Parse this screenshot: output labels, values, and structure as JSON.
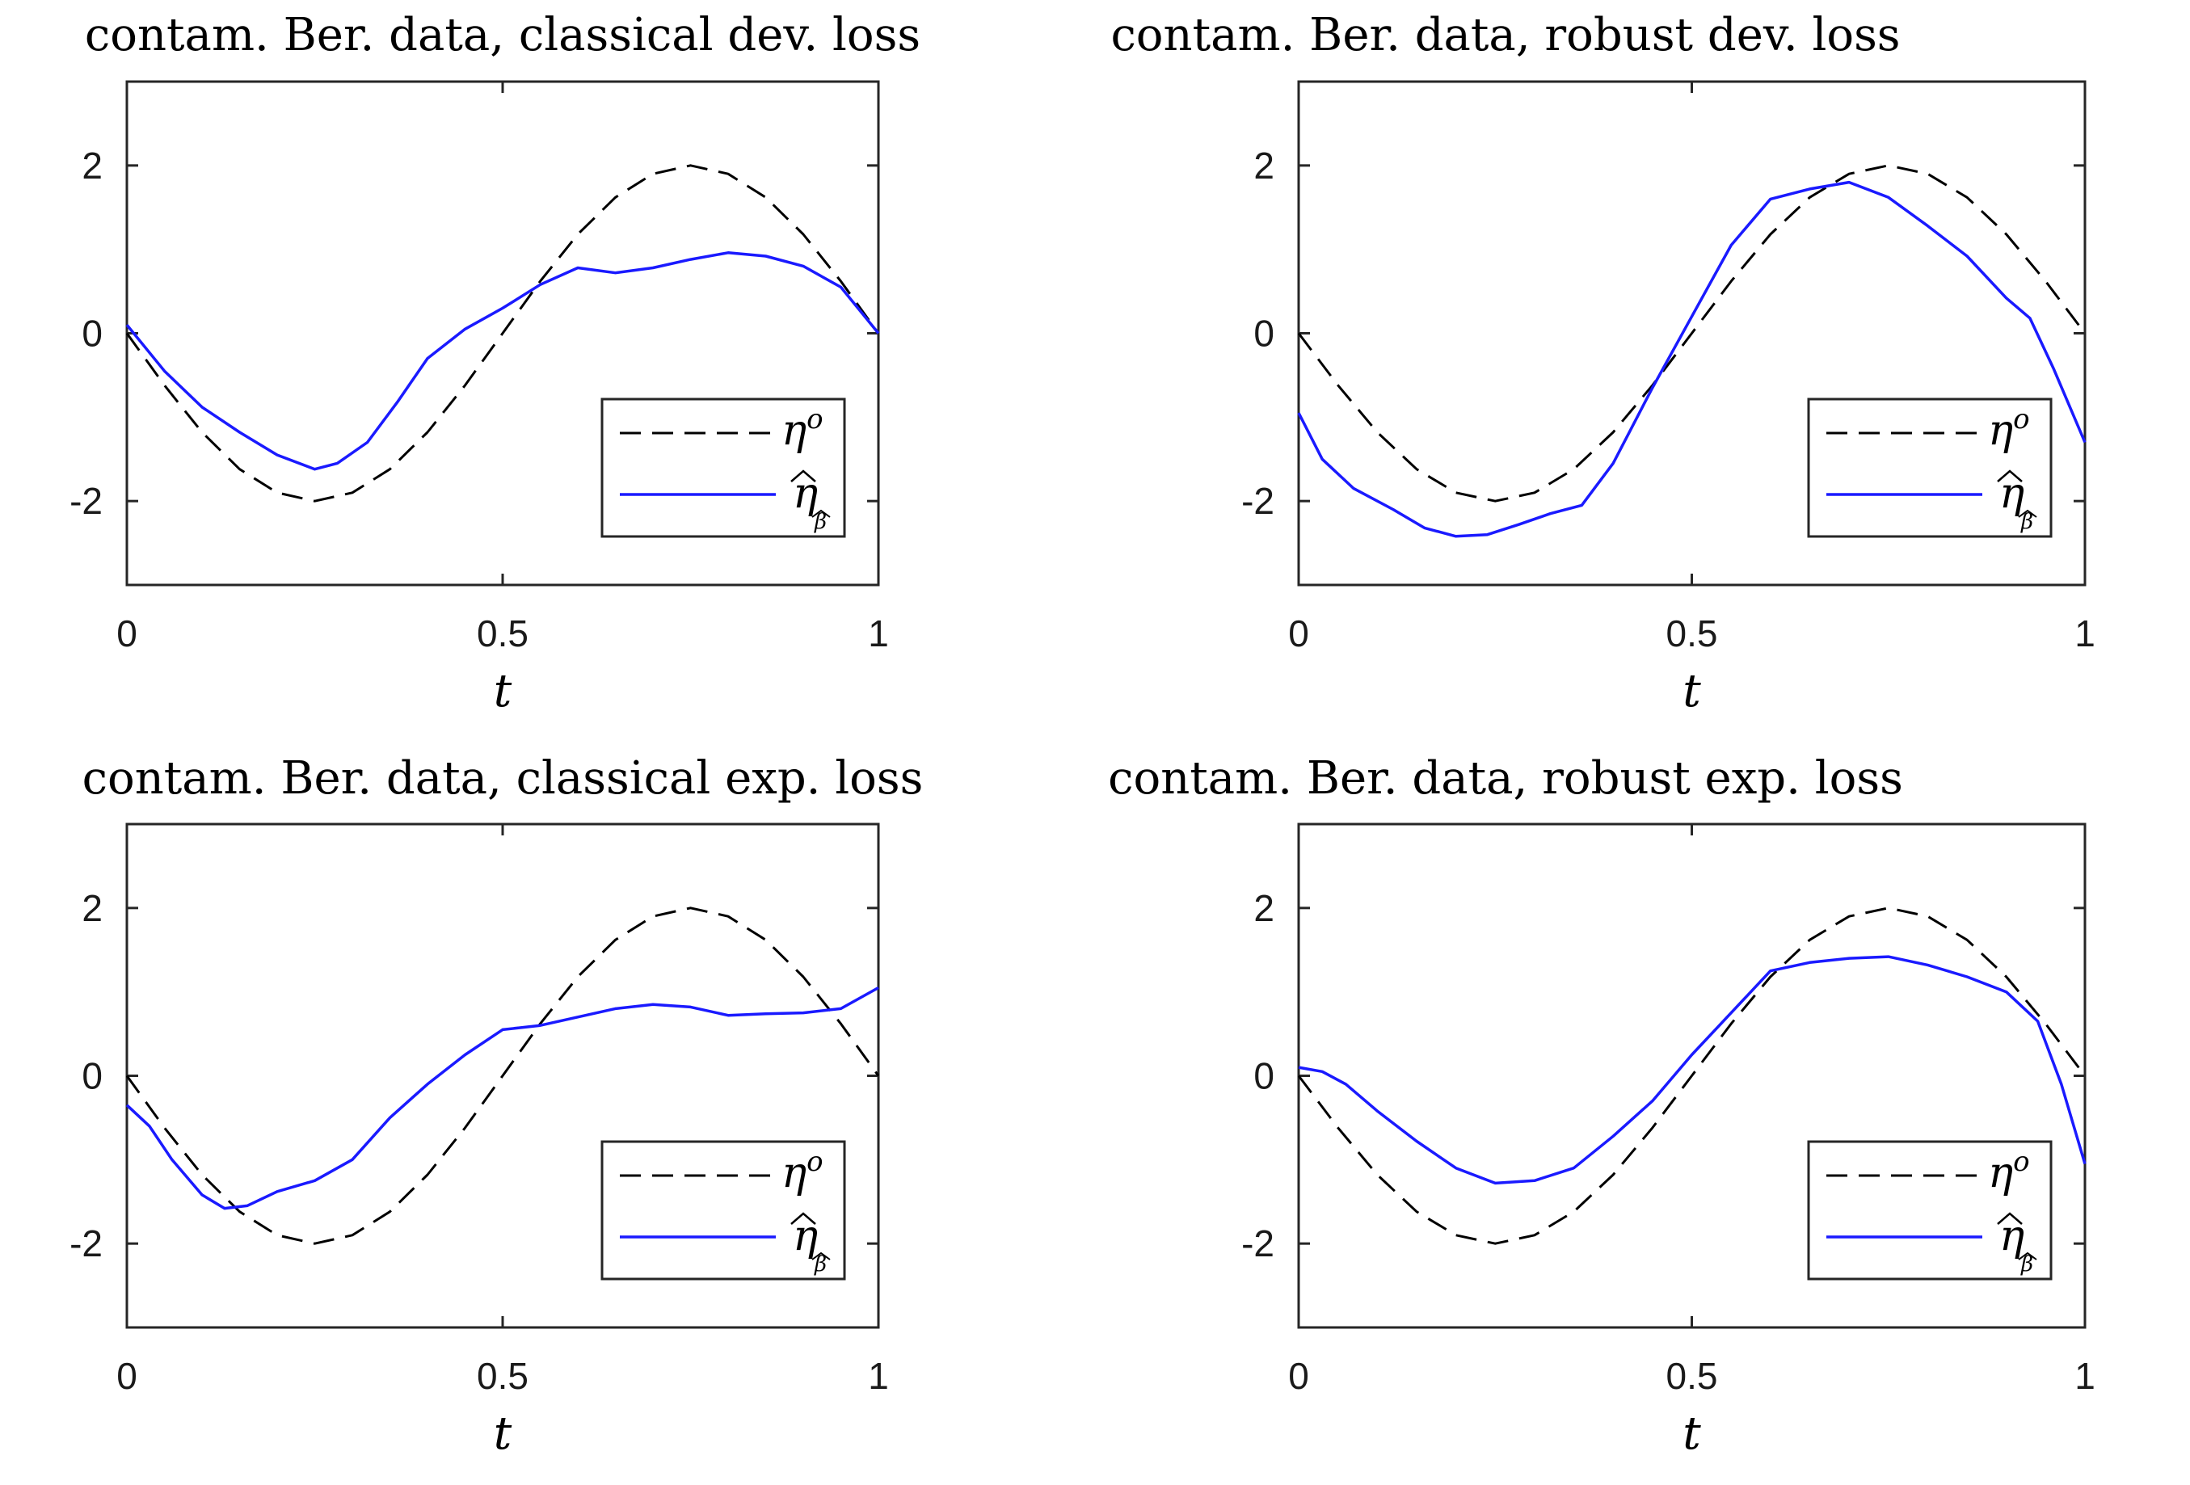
{
  "chart_data": [
    {
      "type": "line",
      "title": "contam. Ber. data, classical dev. loss",
      "xlabel": "t",
      "ylabel": "",
      "xlim": [
        0,
        1
      ],
      "ylim": [
        -3,
        3
      ],
      "xticks": [
        0,
        0.5,
        1
      ],
      "xtick_labels": [
        "0",
        "0.5",
        "1"
      ],
      "yticks": [
        -2,
        0,
        2
      ],
      "ytick_labels": [
        "-2",
        "0",
        "2"
      ],
      "legend": {
        "position": "lower-right",
        "labels": [
          "η",
          "η"
        ],
        "sup": "o",
        "sub": "β"
      },
      "series": [
        {
          "name": "η°",
          "style": "dashed",
          "color": "#000000",
          "x": [
            0,
            0.05,
            0.1,
            0.15,
            0.2,
            0.25,
            0.3,
            0.35,
            0.4,
            0.45,
            0.5,
            0.55,
            0.6,
            0.65,
            0.7,
            0.75,
            0.8,
            0.85,
            0.9,
            0.95,
            1
          ],
          "values": [
            0,
            -0.62,
            -1.18,
            -1.62,
            -1.9,
            -2,
            -1.9,
            -1.62,
            -1.18,
            -0.62,
            0,
            0.62,
            1.18,
            1.62,
            1.9,
            2,
            1.9,
            1.62,
            1.18,
            0.62,
            0
          ]
        },
        {
          "name": "η̂β̂",
          "style": "solid",
          "color": "#1a1aff",
          "x": [
            0,
            0.05,
            0.1,
            0.15,
            0.2,
            0.25,
            0.28,
            0.32,
            0.36,
            0.4,
            0.45,
            0.5,
            0.55,
            0.6,
            0.65,
            0.7,
            0.75,
            0.8,
            0.85,
            0.9,
            0.95,
            1
          ],
          "values": [
            0.1,
            -0.45,
            -0.88,
            -1.18,
            -1.45,
            -1.62,
            -1.55,
            -1.3,
            -0.82,
            -0.3,
            0.05,
            0.3,
            0.58,
            0.78,
            0.72,
            0.78,
            0.88,
            0.96,
            0.92,
            0.8,
            0.55,
            0
          ]
        }
      ]
    },
    {
      "type": "line",
      "title": "contam. Ber. data, robust dev. loss",
      "xlabel": "t",
      "ylabel": "",
      "xlim": [
        0,
        1
      ],
      "ylim": [
        -3,
        3
      ],
      "xticks": [
        0,
        0.5,
        1
      ],
      "xtick_labels": [
        "0",
        "0.5",
        "1"
      ],
      "yticks": [
        -2,
        0,
        2
      ],
      "ytick_labels": [
        "-2",
        "0",
        "2"
      ],
      "legend": {
        "position": "lower-right",
        "labels": [
          "η",
          "η"
        ],
        "sup": "o",
        "sub": "β"
      },
      "series": [
        {
          "name": "η°",
          "style": "dashed",
          "color": "#000000",
          "x": [
            0,
            0.05,
            0.1,
            0.15,
            0.2,
            0.25,
            0.3,
            0.35,
            0.4,
            0.45,
            0.5,
            0.55,
            0.6,
            0.65,
            0.7,
            0.75,
            0.8,
            0.85,
            0.9,
            0.95,
            1
          ],
          "values": [
            0,
            -0.62,
            -1.18,
            -1.62,
            -1.9,
            -2,
            -1.9,
            -1.62,
            -1.18,
            -0.62,
            0,
            0.62,
            1.18,
            1.62,
            1.9,
            2,
            1.9,
            1.62,
            1.18,
            0.62,
            0
          ]
        },
        {
          "name": "η̂β̂",
          "style": "solid",
          "color": "#1a1aff",
          "x": [
            0,
            0.03,
            0.07,
            0.12,
            0.16,
            0.2,
            0.24,
            0.28,
            0.32,
            0.36,
            0.4,
            0.45,
            0.5,
            0.55,
            0.6,
            0.65,
            0.7,
            0.75,
            0.8,
            0.85,
            0.9,
            0.93,
            0.96,
            1
          ],
          "values": [
            -0.95,
            -1.5,
            -1.85,
            -2.1,
            -2.32,
            -2.42,
            -2.4,
            -2.28,
            -2.15,
            -2.05,
            -1.55,
            -0.65,
            0.2,
            1.05,
            1.6,
            1.72,
            1.8,
            1.62,
            1.28,
            0.92,
            0.42,
            0.18,
            -0.42,
            -1.3
          ]
        }
      ]
    },
    {
      "type": "line",
      "title": "contam. Ber. data, classical exp. loss",
      "xlabel": "t",
      "ylabel": "",
      "xlim": [
        0,
        1
      ],
      "ylim": [
        -3,
        3
      ],
      "xticks": [
        0,
        0.5,
        1
      ],
      "xtick_labels": [
        "0",
        "0.5",
        "1"
      ],
      "yticks": [
        -2,
        0,
        2
      ],
      "ytick_labels": [
        "-2",
        "0",
        "2"
      ],
      "legend": {
        "position": "lower-right",
        "labels": [
          "η",
          "η"
        ],
        "sup": "o",
        "sub": "β"
      },
      "series": [
        {
          "name": "η°",
          "style": "dashed",
          "color": "#000000",
          "x": [
            0,
            0.05,
            0.1,
            0.15,
            0.2,
            0.25,
            0.3,
            0.35,
            0.4,
            0.45,
            0.5,
            0.55,
            0.6,
            0.65,
            0.7,
            0.75,
            0.8,
            0.85,
            0.9,
            0.95,
            1
          ],
          "values": [
            0,
            -0.62,
            -1.18,
            -1.62,
            -1.9,
            -2,
            -1.9,
            -1.62,
            -1.18,
            -0.62,
            0,
            0.62,
            1.18,
            1.62,
            1.9,
            2,
            1.9,
            1.62,
            1.18,
            0.62,
            0
          ]
        },
        {
          "name": "η̂β̂",
          "style": "solid",
          "color": "#1a1aff",
          "x": [
            0,
            0.03,
            0.06,
            0.1,
            0.13,
            0.16,
            0.2,
            0.25,
            0.3,
            0.35,
            0.4,
            0.45,
            0.5,
            0.55,
            0.6,
            0.65,
            0.7,
            0.75,
            0.8,
            0.85,
            0.9,
            0.95,
            1
          ],
          "values": [
            -0.35,
            -0.6,
            -1.0,
            -1.42,
            -1.58,
            -1.55,
            -1.38,
            -1.25,
            -1.0,
            -0.5,
            -0.1,
            0.25,
            0.55,
            0.6,
            0.7,
            0.8,
            0.85,
            0.82,
            0.72,
            0.74,
            0.75,
            0.8,
            1.05
          ]
        }
      ]
    },
    {
      "type": "line",
      "title": "contam. Ber. data, robust exp. loss",
      "xlabel": "t",
      "ylabel": "",
      "xlim": [
        0,
        1
      ],
      "ylim": [
        -3,
        3
      ],
      "xticks": [
        0,
        0.5,
        1
      ],
      "xtick_labels": [
        "0",
        "0.5",
        "1"
      ],
      "yticks": [
        -2,
        0,
        2
      ],
      "ytick_labels": [
        "-2",
        "0",
        "2"
      ],
      "legend": {
        "position": "lower-right",
        "labels": [
          "η",
          "η"
        ],
        "sup": "o",
        "sub": "β"
      },
      "series": [
        {
          "name": "η°",
          "style": "dashed",
          "color": "#000000",
          "x": [
            0,
            0.05,
            0.1,
            0.15,
            0.2,
            0.25,
            0.3,
            0.35,
            0.4,
            0.45,
            0.5,
            0.55,
            0.6,
            0.65,
            0.7,
            0.75,
            0.8,
            0.85,
            0.9,
            0.95,
            1
          ],
          "values": [
            0,
            -0.62,
            -1.18,
            -1.62,
            -1.9,
            -2,
            -1.9,
            -1.62,
            -1.18,
            -0.62,
            0,
            0.62,
            1.18,
            1.62,
            1.9,
            2,
            1.9,
            1.62,
            1.18,
            0.62,
            0
          ]
        },
        {
          "name": "η̂β̂",
          "style": "solid",
          "color": "#1a1aff",
          "x": [
            0,
            0.03,
            0.06,
            0.1,
            0.15,
            0.2,
            0.25,
            0.3,
            0.35,
            0.4,
            0.45,
            0.5,
            0.55,
            0.6,
            0.65,
            0.7,
            0.75,
            0.8,
            0.85,
            0.9,
            0.94,
            0.97,
            1
          ],
          "values": [
            0.1,
            0.05,
            -0.1,
            -0.42,
            -0.78,
            -1.1,
            -1.28,
            -1.25,
            -1.1,
            -0.72,
            -0.3,
            0.25,
            0.75,
            1.25,
            1.35,
            1.4,
            1.42,
            1.32,
            1.18,
            1.0,
            0.65,
            -0.1,
            -1.05
          ]
        }
      ]
    }
  ]
}
